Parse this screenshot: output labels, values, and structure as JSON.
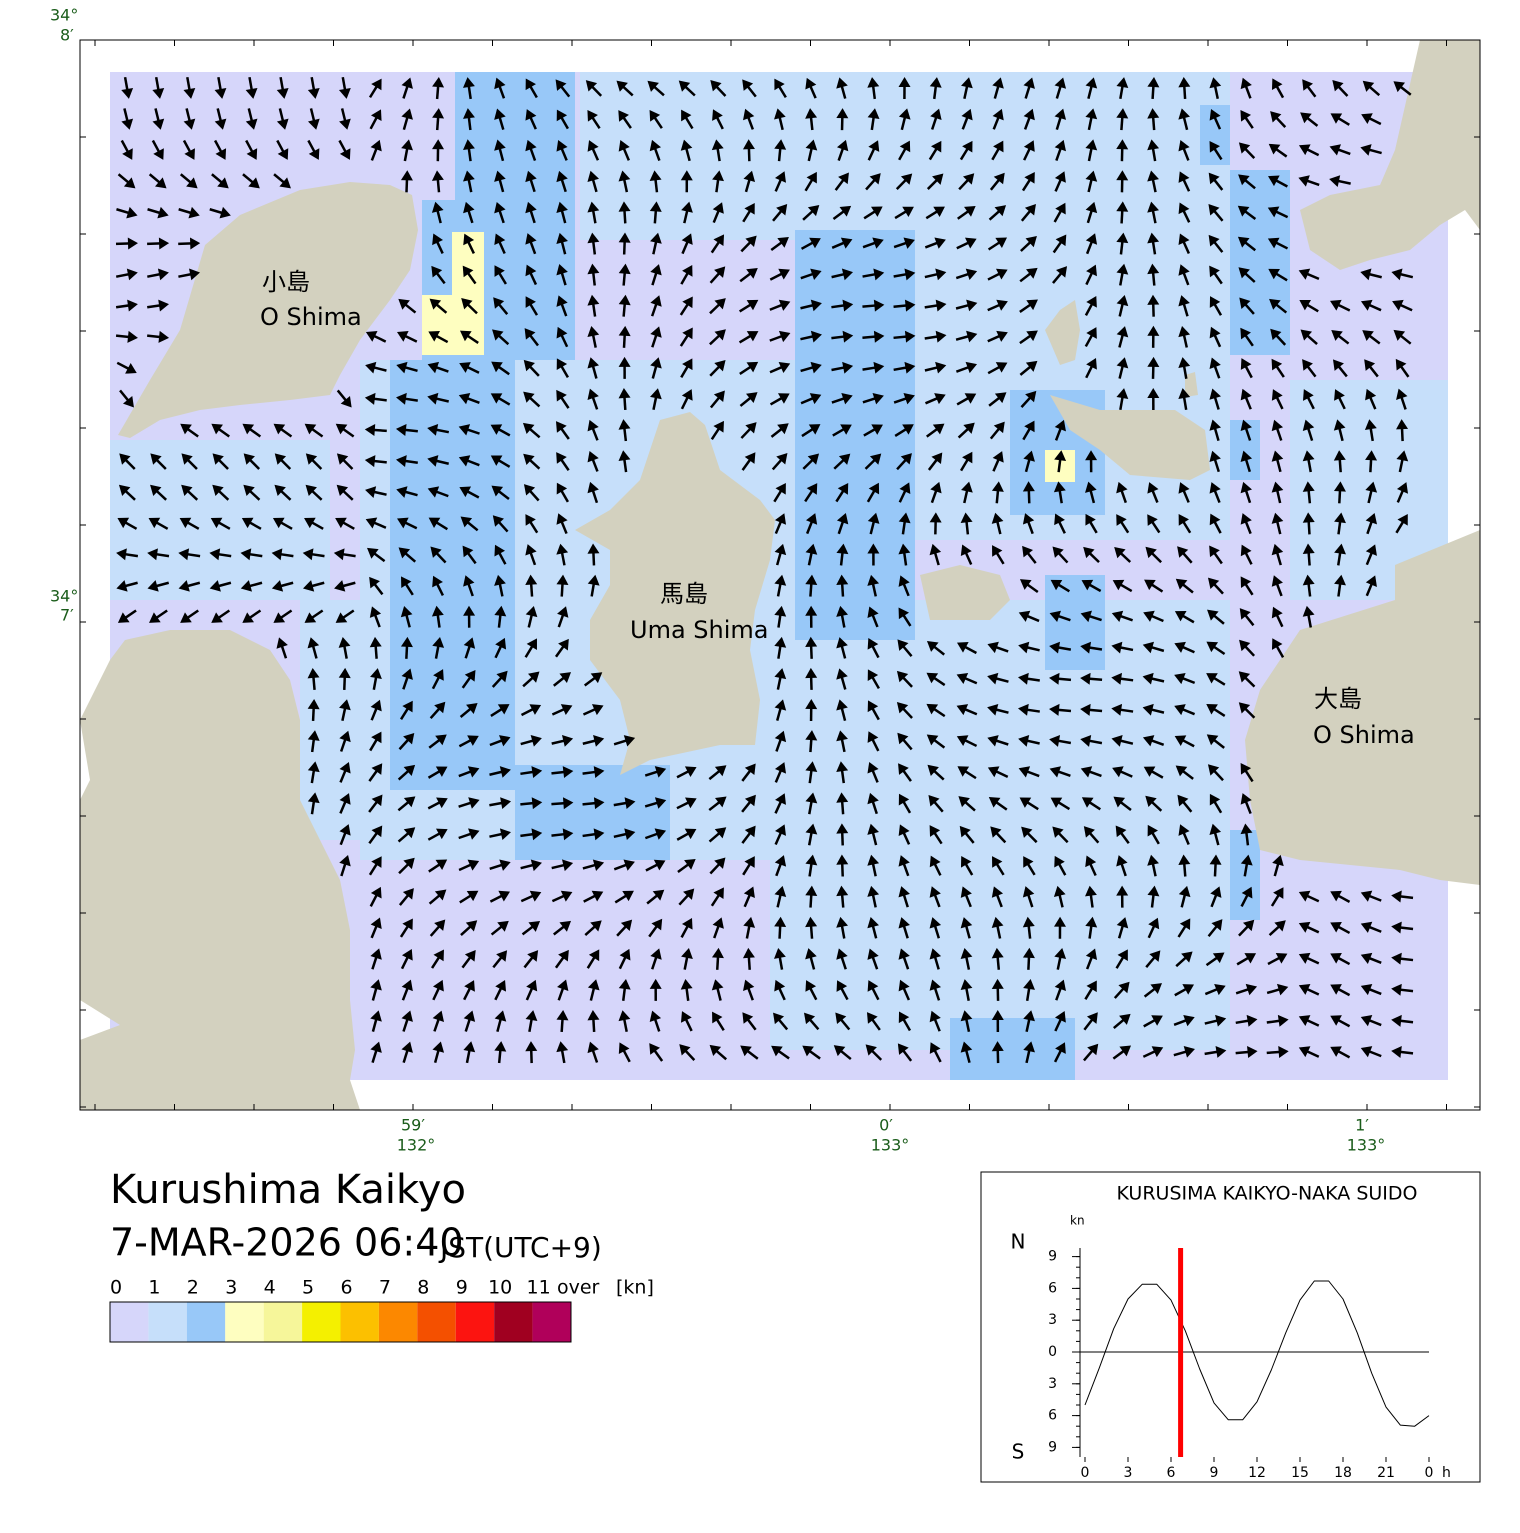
{
  "map": {
    "title": "Kurushima Kaikyo",
    "datetime": "7-MAR-2026 06:40",
    "timezone": "JST(UTC+9)",
    "islands": [
      {
        "ja": "小島",
        "en": "O Shima"
      },
      {
        "ja": "馬島",
        "en": "Uma Shima"
      },
      {
        "ja": "大島",
        "en": "O Shima"
      }
    ],
    "lat_labels": [
      {
        "deg": "34°",
        "min": "8′"
      },
      {
        "deg": "34°",
        "min": "7′"
      }
    ],
    "lon_labels": [
      {
        "min": "59′",
        "deg": "132°"
      },
      {
        "min": "0′",
        "deg": "133°"
      },
      {
        "min": "1′",
        "deg": "133°"
      }
    ]
  },
  "colorbar": {
    "levels": [
      0,
      1,
      2,
      3,
      4,
      5,
      6,
      7,
      8,
      9,
      10,
      11
    ],
    "over_label": "over",
    "unit": "[kn]",
    "colors": [
      "#d6d6fa",
      "#c6dffa",
      "#98c8f8",
      "#fefec0",
      "#f6f69a",
      "#f4f000",
      "#fcc000",
      "#fc8800",
      "#f45000",
      "#fc1410",
      "#a00020",
      "#b0005a"
    ]
  },
  "chart_data": {
    "type": "line",
    "title": "KURUSIMA KAIKYO-NAKA SUIDO",
    "y_unit": "kn",
    "north_label": "N",
    "south_label": "S",
    "x_unit": "h",
    "x": [
      0,
      1,
      2,
      3,
      4,
      5,
      6,
      7,
      8,
      9,
      10,
      11,
      12,
      13,
      14,
      15,
      16,
      17,
      18,
      19,
      20,
      21,
      22,
      23,
      24
    ],
    "values": [
      -5.0,
      -1.5,
      2.2,
      5.0,
      6.4,
      6.4,
      4.9,
      2.0,
      -1.6,
      -4.8,
      -6.4,
      -6.4,
      -4.7,
      -1.7,
      1.8,
      4.9,
      6.7,
      6.7,
      5.0,
      1.8,
      -2.0,
      -5.2,
      -6.9,
      -7.0,
      -6.0
    ],
    "xlim": [
      0,
      24
    ],
    "ylim": [
      -10,
      10
    ],
    "xticks": [
      0,
      3,
      6,
      9,
      12,
      15,
      18,
      21,
      {
        "value": 24,
        "label": "0"
      }
    ],
    "yticks": [
      9,
      6,
      3,
      0,
      {
        "value": -3,
        "label": "3"
      },
      {
        "value": -6,
        "label": "6"
      },
      {
        "value": -9,
        "label": "9"
      }
    ],
    "current_time": 6.67,
    "color": "#000000",
    "marker_color": "#ff0000"
  }
}
